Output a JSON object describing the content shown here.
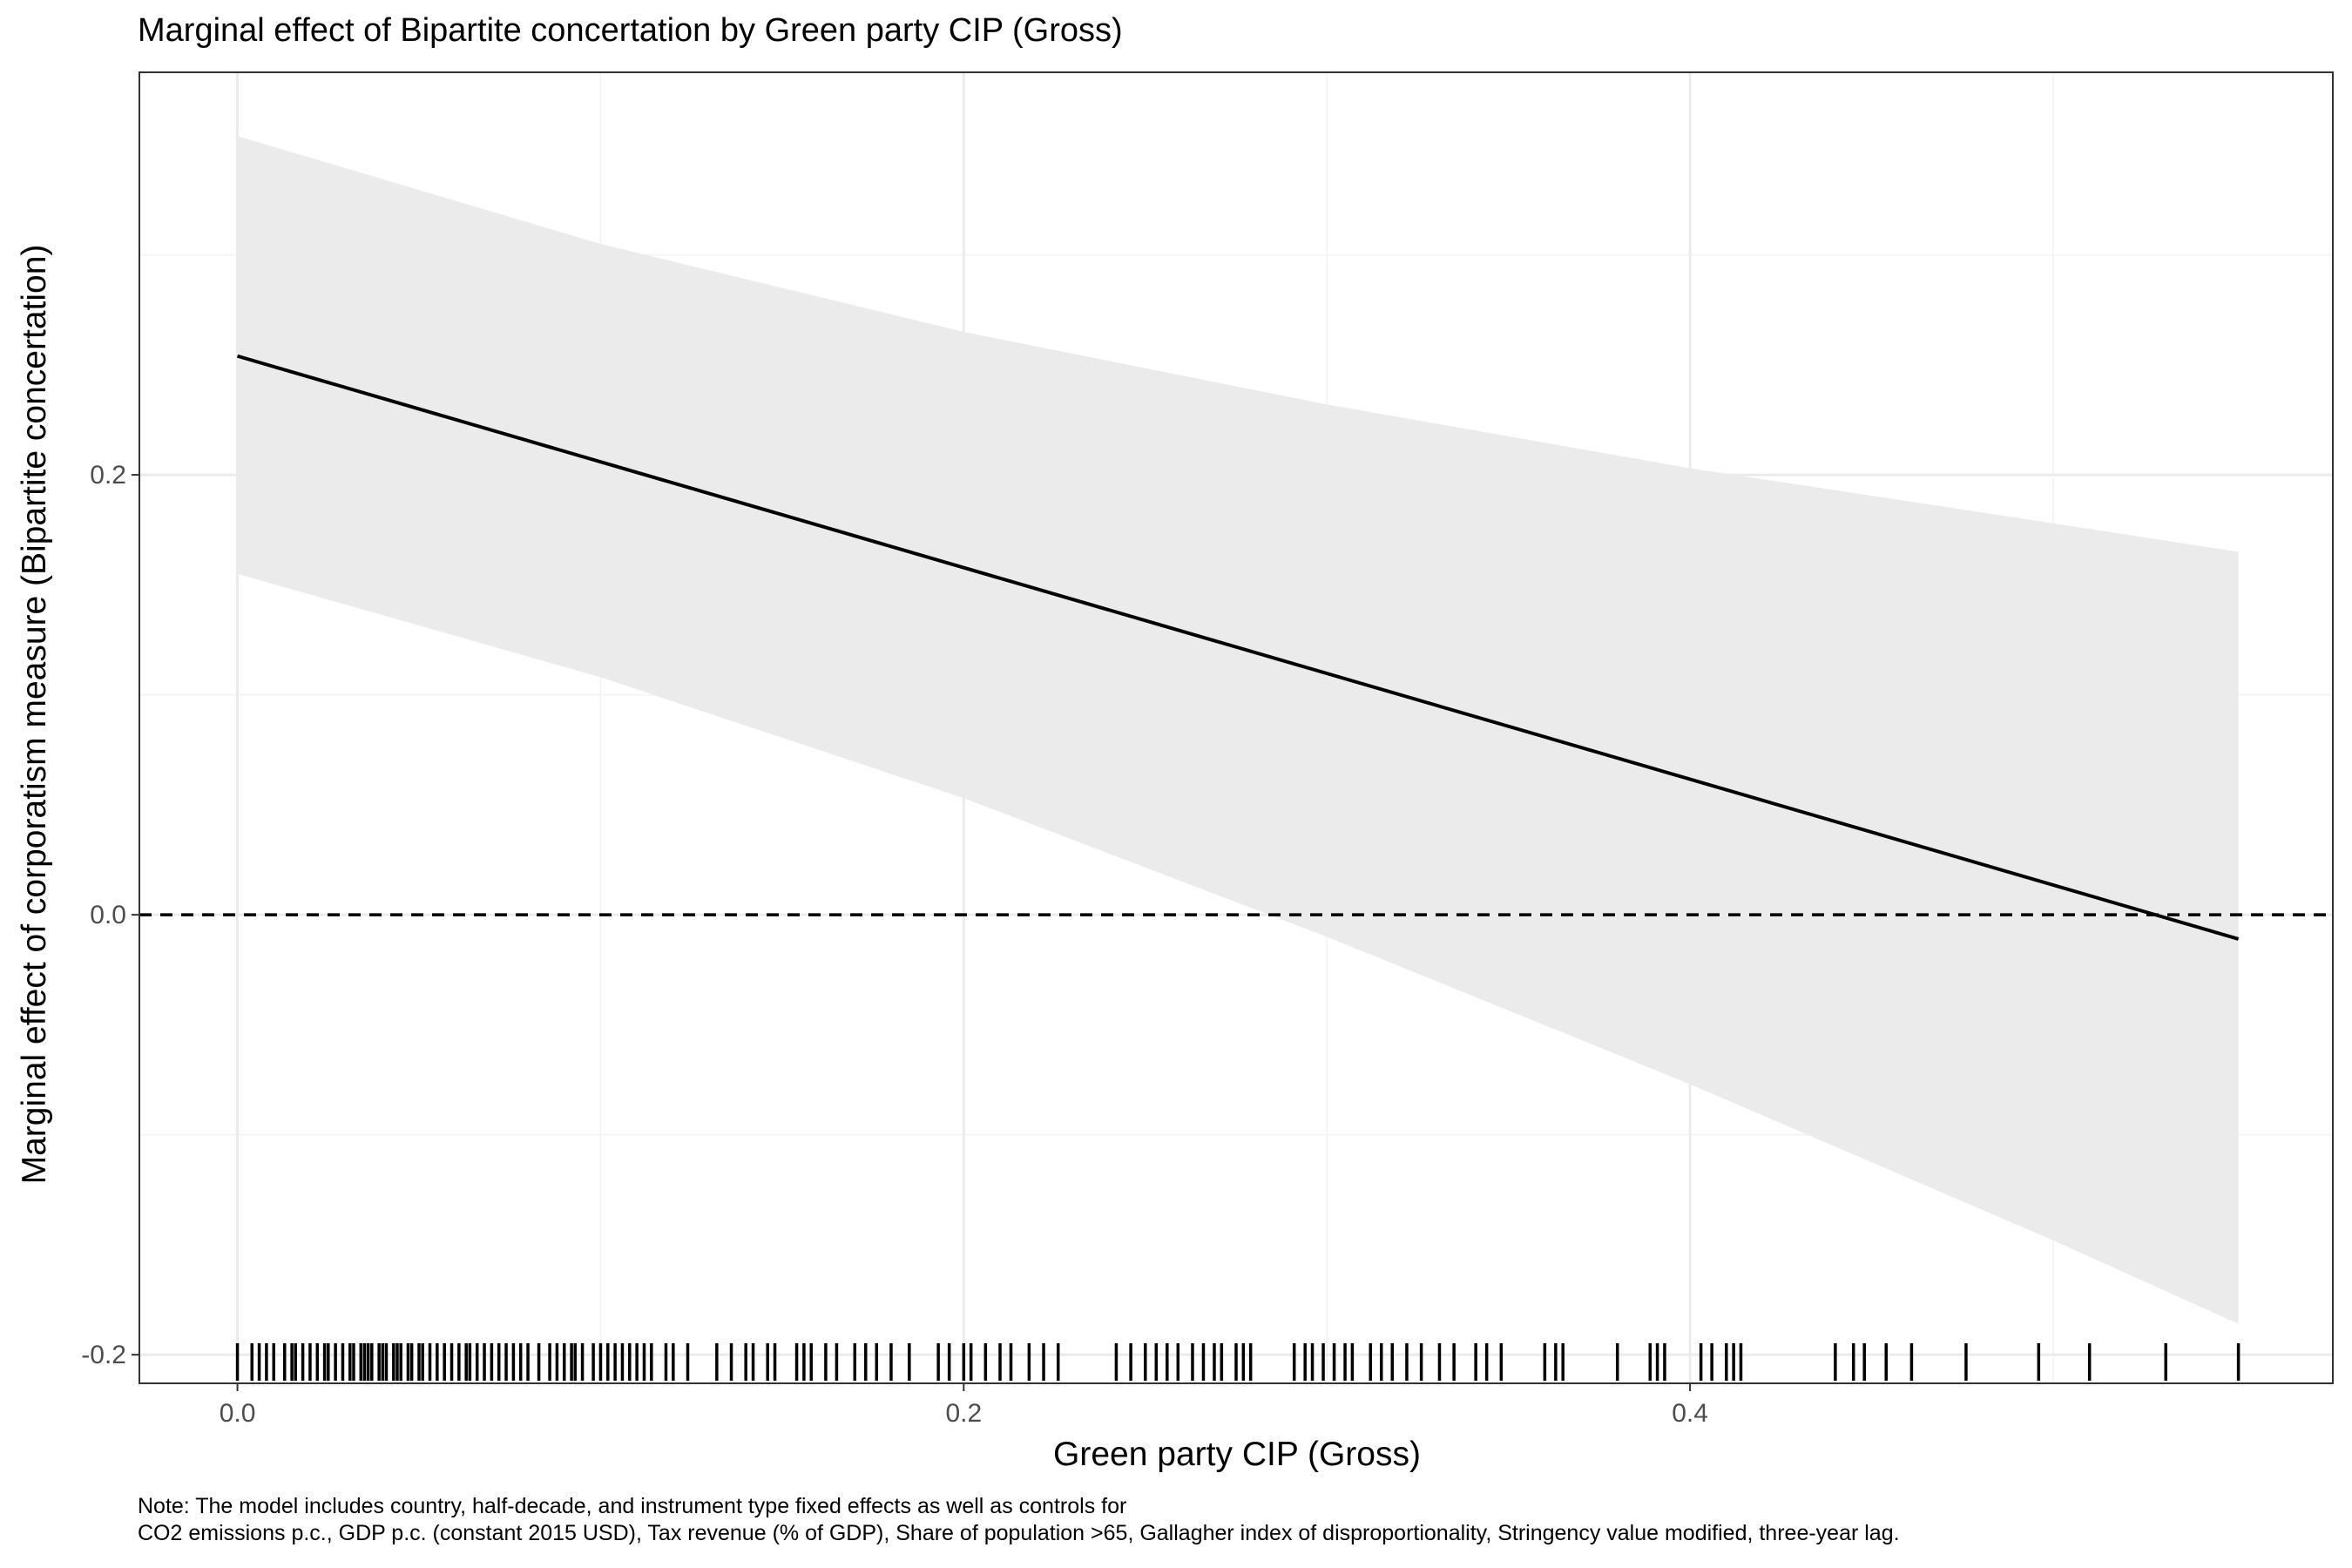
{
  "chart_data": {
    "type": "line",
    "title": "Marginal effect of Bipartite concertation by Green party CIP (Gross)",
    "xlabel": "Green party CIP (Gross)",
    "ylabel": "Marginal effect of corporatism measure (Bipartite concertation)",
    "xlim": [
      -0.027,
      0.577
    ],
    "ylim": [
      -0.213,
      0.383
    ],
    "x_ticks": [
      0.0,
      0.2,
      0.4
    ],
    "x_tick_labels": [
      "0.0",
      "0.2",
      "0.4"
    ],
    "y_ticks": [
      -0.2,
      0.0,
      0.2
    ],
    "y_tick_labels": [
      "-0.2",
      "0.0",
      "0.2"
    ],
    "x_minor_grid": [
      0.1,
      0.3,
      0.5
    ],
    "y_minor_grid": [
      -0.1,
      0.1,
      0.3
    ],
    "grid": true,
    "reference_line": {
      "y": 0.0,
      "style": "dashed"
    },
    "effect_line": {
      "x": [
        0.0,
        0.551
      ],
      "y": [
        0.254,
        -0.011
      ]
    },
    "confidence_band": {
      "x": [
        0.0,
        0.1,
        0.2,
        0.3,
        0.4,
        0.5,
        0.551
      ],
      "lower": [
        0.155,
        0.108,
        0.053,
        -0.01,
        -0.077,
        -0.148,
        -0.186
      ],
      "upper": [
        0.354,
        0.305,
        0.265,
        0.232,
        0.203,
        0.178,
        0.165
      ],
      "color": "#ebebeb"
    },
    "rug": [
      0.0,
      0.004,
      0.006,
      0.008,
      0.01,
      0.013,
      0.015,
      0.016,
      0.018,
      0.02,
      0.022,
      0.024,
      0.025,
      0.027,
      0.029,
      0.031,
      0.032,
      0.034,
      0.035,
      0.036,
      0.037,
      0.039,
      0.04,
      0.041,
      0.043,
      0.044,
      0.045,
      0.047,
      0.048,
      0.05,
      0.051,
      0.053,
      0.055,
      0.057,
      0.059,
      0.061,
      0.063,
      0.064,
      0.066,
      0.068,
      0.07,
      0.072,
      0.074,
      0.076,
      0.078,
      0.08,
      0.083,
      0.086,
      0.088,
      0.09,
      0.092,
      0.093,
      0.095,
      0.098,
      0.1,
      0.102,
      0.104,
      0.106,
      0.108,
      0.11,
      0.112,
      0.114,
      0.118,
      0.12,
      0.124,
      0.132,
      0.136,
      0.14,
      0.142,
      0.146,
      0.148,
      0.154,
      0.156,
      0.158,
      0.162,
      0.165,
      0.17,
      0.173,
      0.176,
      0.18,
      0.185,
      0.193,
      0.196,
      0.2,
      0.202,
      0.206,
      0.21,
      0.213,
      0.218,
      0.222,
      0.226,
      0.242,
      0.246,
      0.25,
      0.253,
      0.256,
      0.259,
      0.263,
      0.266,
      0.269,
      0.271,
      0.275,
      0.277,
      0.279,
      0.291,
      0.294,
      0.296,
      0.299,
      0.302,
      0.305,
      0.307,
      0.312,
      0.315,
      0.318,
      0.322,
      0.326,
      0.331,
      0.335,
      0.341,
      0.344,
      0.348,
      0.36,
      0.363,
      0.365,
      0.38,
      0.389,
      0.391,
      0.393,
      0.403,
      0.406,
      0.41,
      0.412,
      0.414,
      0.44,
      0.445,
      0.448,
      0.454,
      0.461,
      0.476,
      0.496,
      0.51,
      0.531,
      0.551
    ]
  },
  "note": {
    "line1": "Note: The model includes country, half-decade, and instrument type fixed effects as well as controls for",
    "line2": "CO2 emissions p.c., GDP p.c. (constant 2015 USD), Tax revenue (% of GDP), Share of population >65, Gallagher index of disproportionality, Stringency value modified, three-year lag."
  }
}
